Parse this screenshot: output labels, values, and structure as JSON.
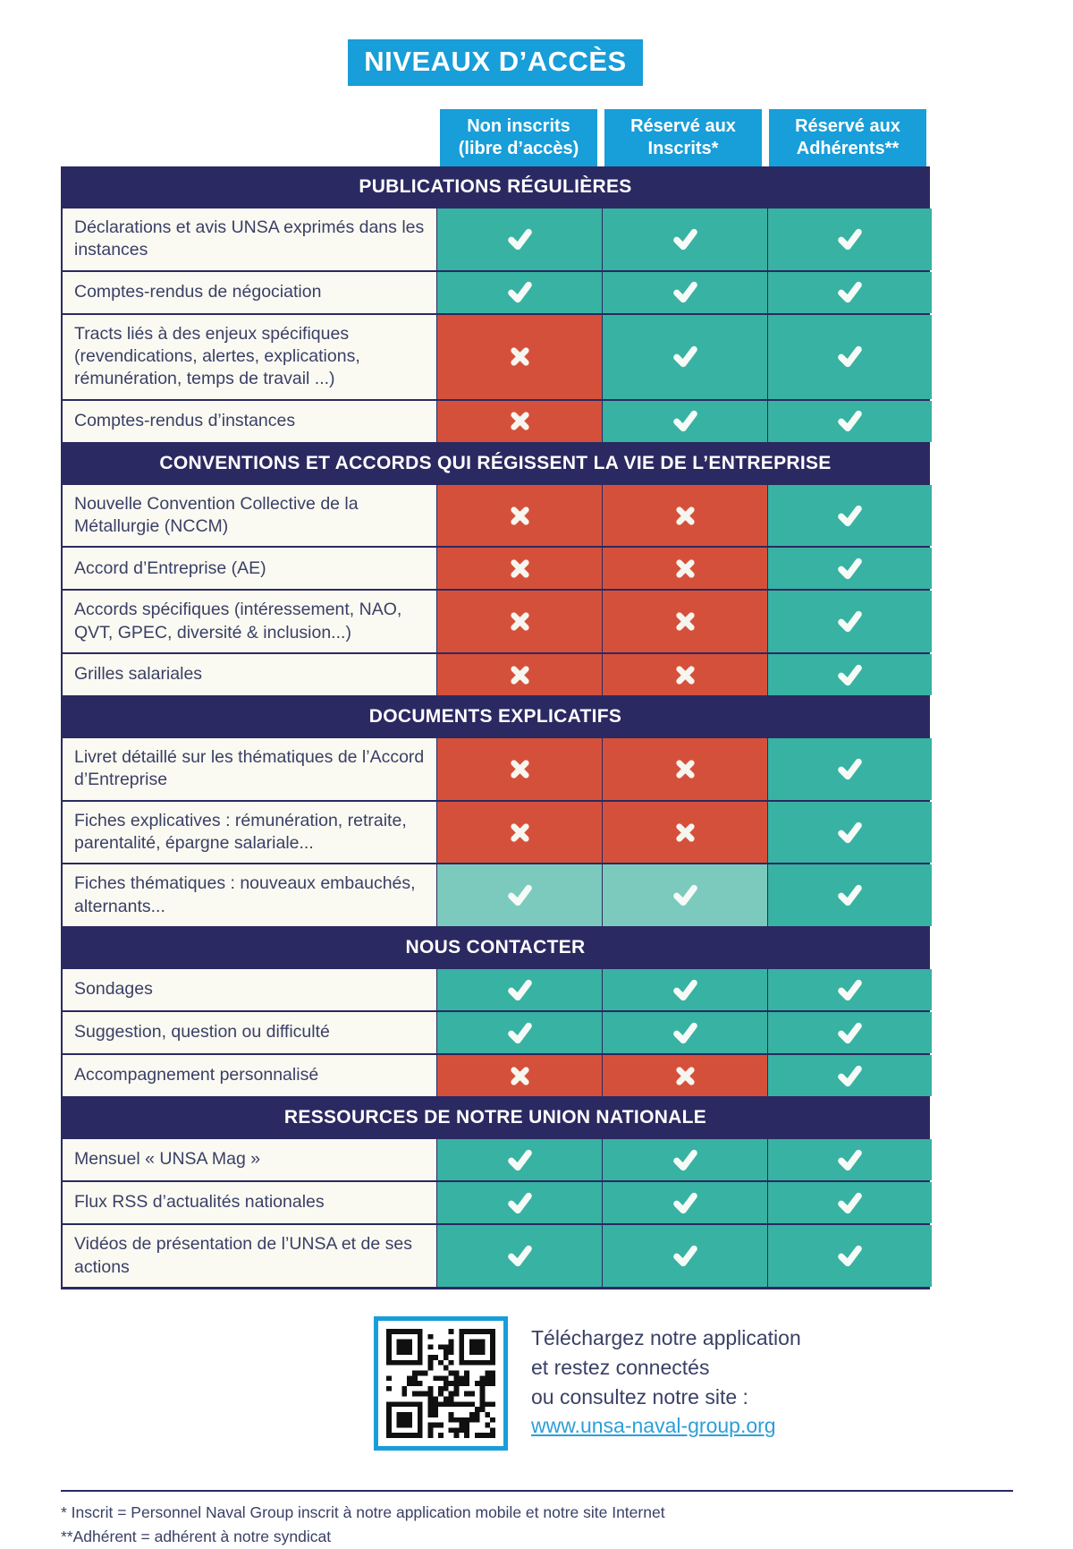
{
  "page": {
    "title": "NIVEAUX D’ACCÈS"
  },
  "table": {
    "columns": [
      {
        "line1": "Non inscrits",
        "line2": "(libre d’accès)"
      },
      {
        "line1": "Réservé aux",
        "line2": "Inscrits*"
      },
      {
        "line1": "Réservé aux",
        "line2": "Adhérents**"
      }
    ],
    "sections": [
      {
        "header": "PUBLICATIONS RÉGULIÈRES",
        "rows": [
          {
            "label": "Déclarations et avis UNSA exprimés dans les instances",
            "access": [
              "check",
              "check",
              "check"
            ]
          },
          {
            "label": "Comptes-rendus de négociation",
            "access": [
              "check",
              "check",
              "check"
            ]
          },
          {
            "label": "Tracts liés à des enjeux spécifiques (revendications, alertes, explications, rémunération, temps de travail ...)",
            "access": [
              "cross",
              "check",
              "check"
            ]
          },
          {
            "label": "Comptes-rendus d’instances",
            "access": [
              "cross",
              "check",
              "check"
            ]
          }
        ]
      },
      {
        "header": "CONVENTIONS ET ACCORDS QUI RÉGISSENT LA VIE DE L’ENTREPRISE",
        "rows": [
          {
            "label": "Nouvelle Convention Collective de la Métallurgie (NCCM)",
            "access": [
              "cross",
              "cross",
              "check"
            ]
          },
          {
            "label": "Accord d’Entreprise (AE)",
            "access": [
              "cross",
              "cross",
              "check"
            ]
          },
          {
            "label": "Accords spécifiques (intéressement, NAO, QVT, GPEC, diversité & inclusion...)",
            "access": [
              "cross",
              "cross",
              "check"
            ]
          },
          {
            "label": "Grilles salariales",
            "access": [
              "cross",
              "cross",
              "check"
            ]
          }
        ]
      },
      {
        "header": "DOCUMENTS EXPLICATIFS",
        "rows": [
          {
            "label": "Livret détaillé sur les thématiques de l’Accord d’Entreprise",
            "access": [
              "cross",
              "cross",
              "check"
            ]
          },
          {
            "label": "Fiches explicatives : rémunération, retraite, parentalité, épargne salariale...",
            "access": [
              "cross",
              "cross",
              "check"
            ]
          },
          {
            "label": "Fiches thématiques : nouveaux embauchés, alternants...",
            "access": [
              "check_light",
              "check_light",
              "check"
            ]
          }
        ]
      },
      {
        "header": "NOUS CONTACTER",
        "rows": [
          {
            "label": "Sondages",
            "access": [
              "check",
              "check",
              "check"
            ]
          },
          {
            "label": "Suggestion, question ou difficulté",
            "access": [
              "check",
              "check",
              "check"
            ]
          },
          {
            "label": "Accompagnement personnalisé",
            "access": [
              "cross",
              "cross",
              "check"
            ]
          }
        ]
      },
      {
        "header": "RESSOURCES DE NOTRE UNION NATIONALE",
        "rows": [
          {
            "label": "Mensuel « UNSA Mag »",
            "access": [
              "check",
              "check",
              "check"
            ]
          },
          {
            "label": "Flux RSS d’actualités nationales",
            "access": [
              "check",
              "check",
              "check"
            ]
          },
          {
            "label": "Vidéos de présentation de l’UNSA et de ses actions",
            "access": [
              "check",
              "check",
              "check"
            ]
          }
        ]
      }
    ],
    "icon_names": {
      "check": "check-icon",
      "cross": "cross-icon"
    }
  },
  "qr_block": {
    "icon": "qr-code-icon",
    "lines": [
      "Téléchargez notre application",
      "et restez connectés",
      "ou consultez notre site :"
    ],
    "link": "www.unsa-naval-group.org"
  },
  "footnotes": [
    "* Inscrit = Personnel Naval Group inscrit à notre application mobile et notre site Internet",
    "**Adhérent = adhérent à notre syndicat"
  ],
  "colors": {
    "accent_blue": "#189ed9",
    "navy": "#2b2961",
    "teal": "#38b2a3",
    "teal_light": "#7ccabe",
    "red": "#d5503a",
    "text_navy": "#3a4066",
    "label_bg": "#fbfaf2",
    "link_blue": "#2d9fd8"
  }
}
